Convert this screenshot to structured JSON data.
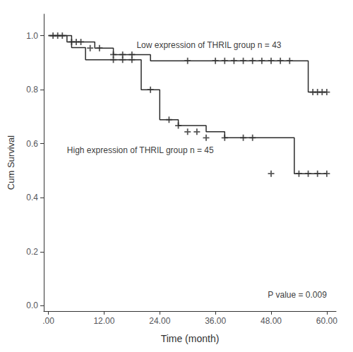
{
  "chart_data": {
    "type": "step",
    "xlabel": "Time (month)",
    "ylabel": "Cum Survival",
    "xlim": [
      -1,
      62
    ],
    "ylim": [
      -0.02,
      1.08
    ],
    "xticks": [
      {
        "value": 0,
        "label": ".00"
      },
      {
        "value": 12,
        "label": "12.00"
      },
      {
        "value": 24,
        "label": "24.00"
      },
      {
        "value": 36,
        "label": "36.00"
      },
      {
        "value": 48,
        "label": "48.00"
      },
      {
        "value": 60,
        "label": "60.00"
      }
    ],
    "yticks": [
      {
        "value": 0.0,
        "label": "0.0"
      },
      {
        "value": 0.2,
        "label": "0.2"
      },
      {
        "value": 0.4,
        "label": "0.4"
      },
      {
        "value": 0.6,
        "label": "0.6"
      },
      {
        "value": 0.8,
        "label": "0.8"
      },
      {
        "value": 1.0,
        "label": "1.0"
      }
    ],
    "grid": false,
    "color": "#2a2a2a",
    "series": [
      {
        "type": "step",
        "x": [
          0,
          3,
          4,
          8,
          10,
          14,
          18,
          22,
          26,
          54,
          56,
          60
        ],
        "values": [
          1.0,
          1.0,
          0.977,
          0.977,
          0.954,
          0.93,
          0.93,
          0.907,
          0.907,
          0.907,
          0.791,
          0.791
        ]
      },
      {
        "type": "step",
        "x": [
          0,
          5,
          8,
          14,
          20,
          24,
          28,
          34,
          38,
          44,
          53,
          60
        ],
        "values": [
          1.0,
          0.956,
          0.911,
          0.911,
          0.8,
          0.689,
          0.667,
          0.644,
          0.622,
          0.622,
          0.489,
          0.489
        ]
      },
      {
        "type": "scatter",
        "marker": "+",
        "x": [
          1,
          2,
          3,
          5,
          6,
          7,
          9,
          11,
          14,
          16,
          18,
          30,
          36,
          38,
          40,
          42,
          44,
          46,
          48,
          50,
          52,
          57,
          58,
          59,
          60
        ],
        "values": [
          1.0,
          1.0,
          1.0,
          0.977,
          0.977,
          0.977,
          0.954,
          0.954,
          0.93,
          0.93,
          0.93,
          0.907,
          0.907,
          0.907,
          0.907,
          0.907,
          0.907,
          0.907,
          0.907,
          0.907,
          0.907,
          0.791,
          0.791,
          0.791,
          0.791
        ]
      },
      {
        "type": "scatter",
        "marker": "+",
        "x": [
          14,
          16,
          18,
          22,
          26,
          28,
          30,
          32,
          34,
          38,
          42,
          44,
          48,
          54,
          56,
          58,
          60
        ],
        "values": [
          0.911,
          0.911,
          0.911,
          0.8,
          0.689,
          0.667,
          0.644,
          0.644,
          0.622,
          0.622,
          0.622,
          0.622,
          0.489,
          0.489,
          0.489,
          0.489,
          0.489
        ]
      }
    ],
    "annotations": [
      {
        "text": "Low expression of THRIL group n = 43",
        "x": 19,
        "y": 0.965
      },
      {
        "text": "High expression of THRIL group n = 45",
        "x": 4,
        "y": 0.575
      },
      {
        "text": "P value = 0.009",
        "x": 60,
        "y": 0.04
      }
    ]
  }
}
